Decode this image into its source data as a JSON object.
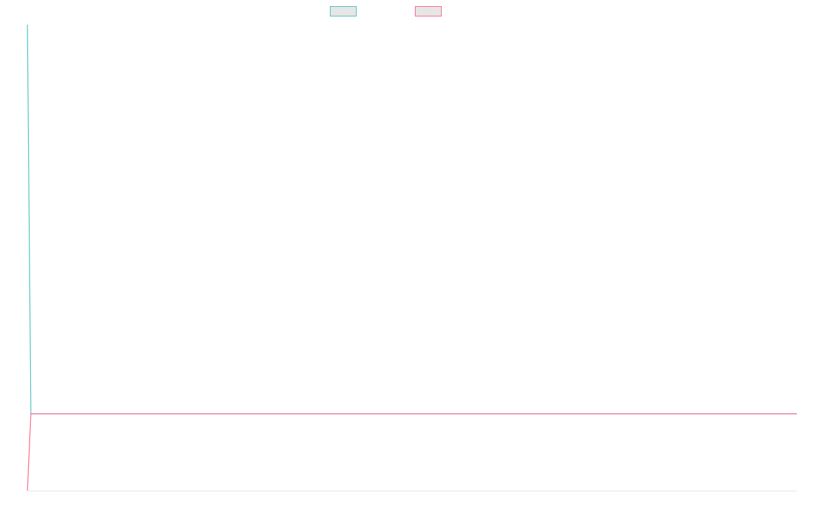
{
  "chart_data": {
    "type": "line",
    "title": "",
    "xlabel": "",
    "ylabel": "",
    "x_type": "index",
    "ylim": [
      0,
      100
    ],
    "grid": false,
    "legend_position": "top-center",
    "series": [
      {
        "name": "",
        "color": "#4bc0c0",
        "fill": "#e6e6e6",
        "values": [
          100,
          16.5,
          16.5
        ]
      },
      {
        "name": "",
        "color": "#ff6384",
        "fill": "#e6e6e6",
        "values": [
          0,
          16.5,
          16.5
        ]
      }
    ],
    "axis_color": "#e5e5e5"
  }
}
